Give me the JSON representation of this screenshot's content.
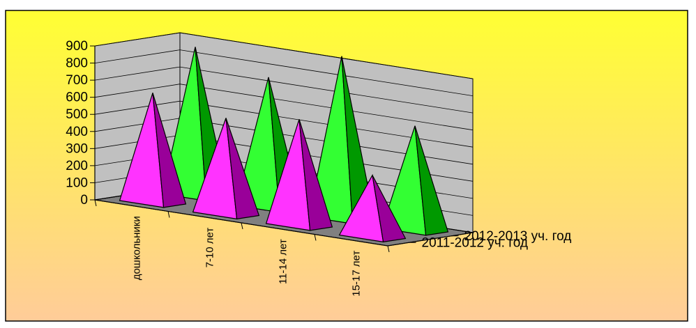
{
  "chart_data": {
    "type": "bar",
    "bar_shape": "pyramid",
    "three_d": true,
    "categories": [
      "дошкольники",
      "7-10 лет",
      "11-14 лет",
      "15-17 лет"
    ],
    "series": [
      {
        "name": "2011-2012 уч. год",
        "values": [
          640,
          560,
          620,
          360
        ],
        "color": "#ff33ff",
        "side_color": "#990099"
      },
      {
        "name": "2012-2013 уч. год",
        "values": [
          870,
          760,
          950,
          610
        ],
        "color": "#33ff33",
        "side_color": "#009900"
      }
    ],
    "y_ticks": [
      "0",
      "100",
      "200",
      "300",
      "400",
      "500",
      "600",
      "700",
      "800",
      "900"
    ],
    "ylim": [
      0,
      900
    ],
    "grid": true,
    "background": {
      "top": "#ffff33",
      "bottom": "#ffcc99"
    },
    "wall_color": "#c0c0c0",
    "floor_color": "#808080"
  }
}
